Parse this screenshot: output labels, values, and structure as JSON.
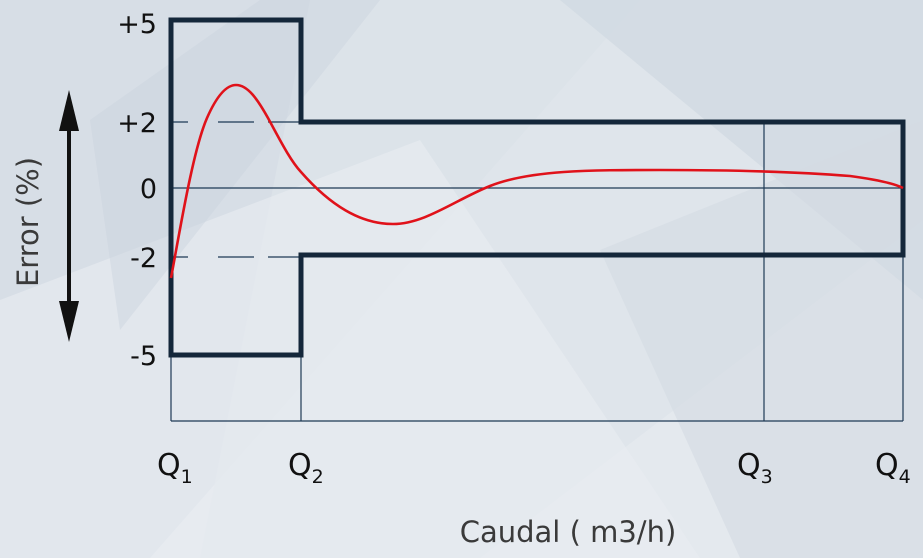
{
  "diagram": {
    "y_axis_label": "Error (%)",
    "x_axis_label": "Caudal ( m3/h)",
    "y_ticks": [
      {
        "label": "+5",
        "value": 5
      },
      {
        "label": "+2",
        "value": 2
      },
      {
        "label": "0",
        "value": 0
      },
      {
        "label": "-2",
        "value": -2
      },
      {
        "label": "-5",
        "value": -5
      }
    ],
    "q_labels": [
      {
        "main": "Q",
        "sub": "1"
      },
      {
        "main": "Q",
        "sub": "2"
      },
      {
        "main": "Q",
        "sub": "3"
      },
      {
        "main": "Q",
        "sub": "4"
      }
    ],
    "colors": {
      "envelope": "#14273a",
      "curve": "#e0121a",
      "grid": "#1e3a55",
      "arrow": "#111111",
      "background": "#e4e9ee"
    },
    "envelope": {
      "low_flow_zone_limits_percent": [
        5,
        -5
      ],
      "high_flow_zone_limits_percent": [
        2,
        -2
      ]
    }
  },
  "chart_data": {
    "type": "line",
    "title": "",
    "xlabel": "Caudal ( m3/h)",
    "ylabel": "Error (%)",
    "ylim": [
      -5,
      5
    ],
    "x_categories": [
      "Q1",
      "Q2",
      "Q3",
      "Q4"
    ],
    "series": [
      {
        "name": "",
        "note_x_scale": "Q1=0, Q2=1, Q3=4.55, Q4=5.55",
        "x": [
          0,
          0.3,
          0.5,
          0.85,
          1.0,
          1.7,
          2.5,
          3.0,
          4.55,
          5.55
        ],
        "y": [
          -2.8,
          2.2,
          3.1,
          2.0,
          0.9,
          -1.0,
          0.2,
          0.5,
          0.5,
          0.1
        ]
      }
    ]
  }
}
